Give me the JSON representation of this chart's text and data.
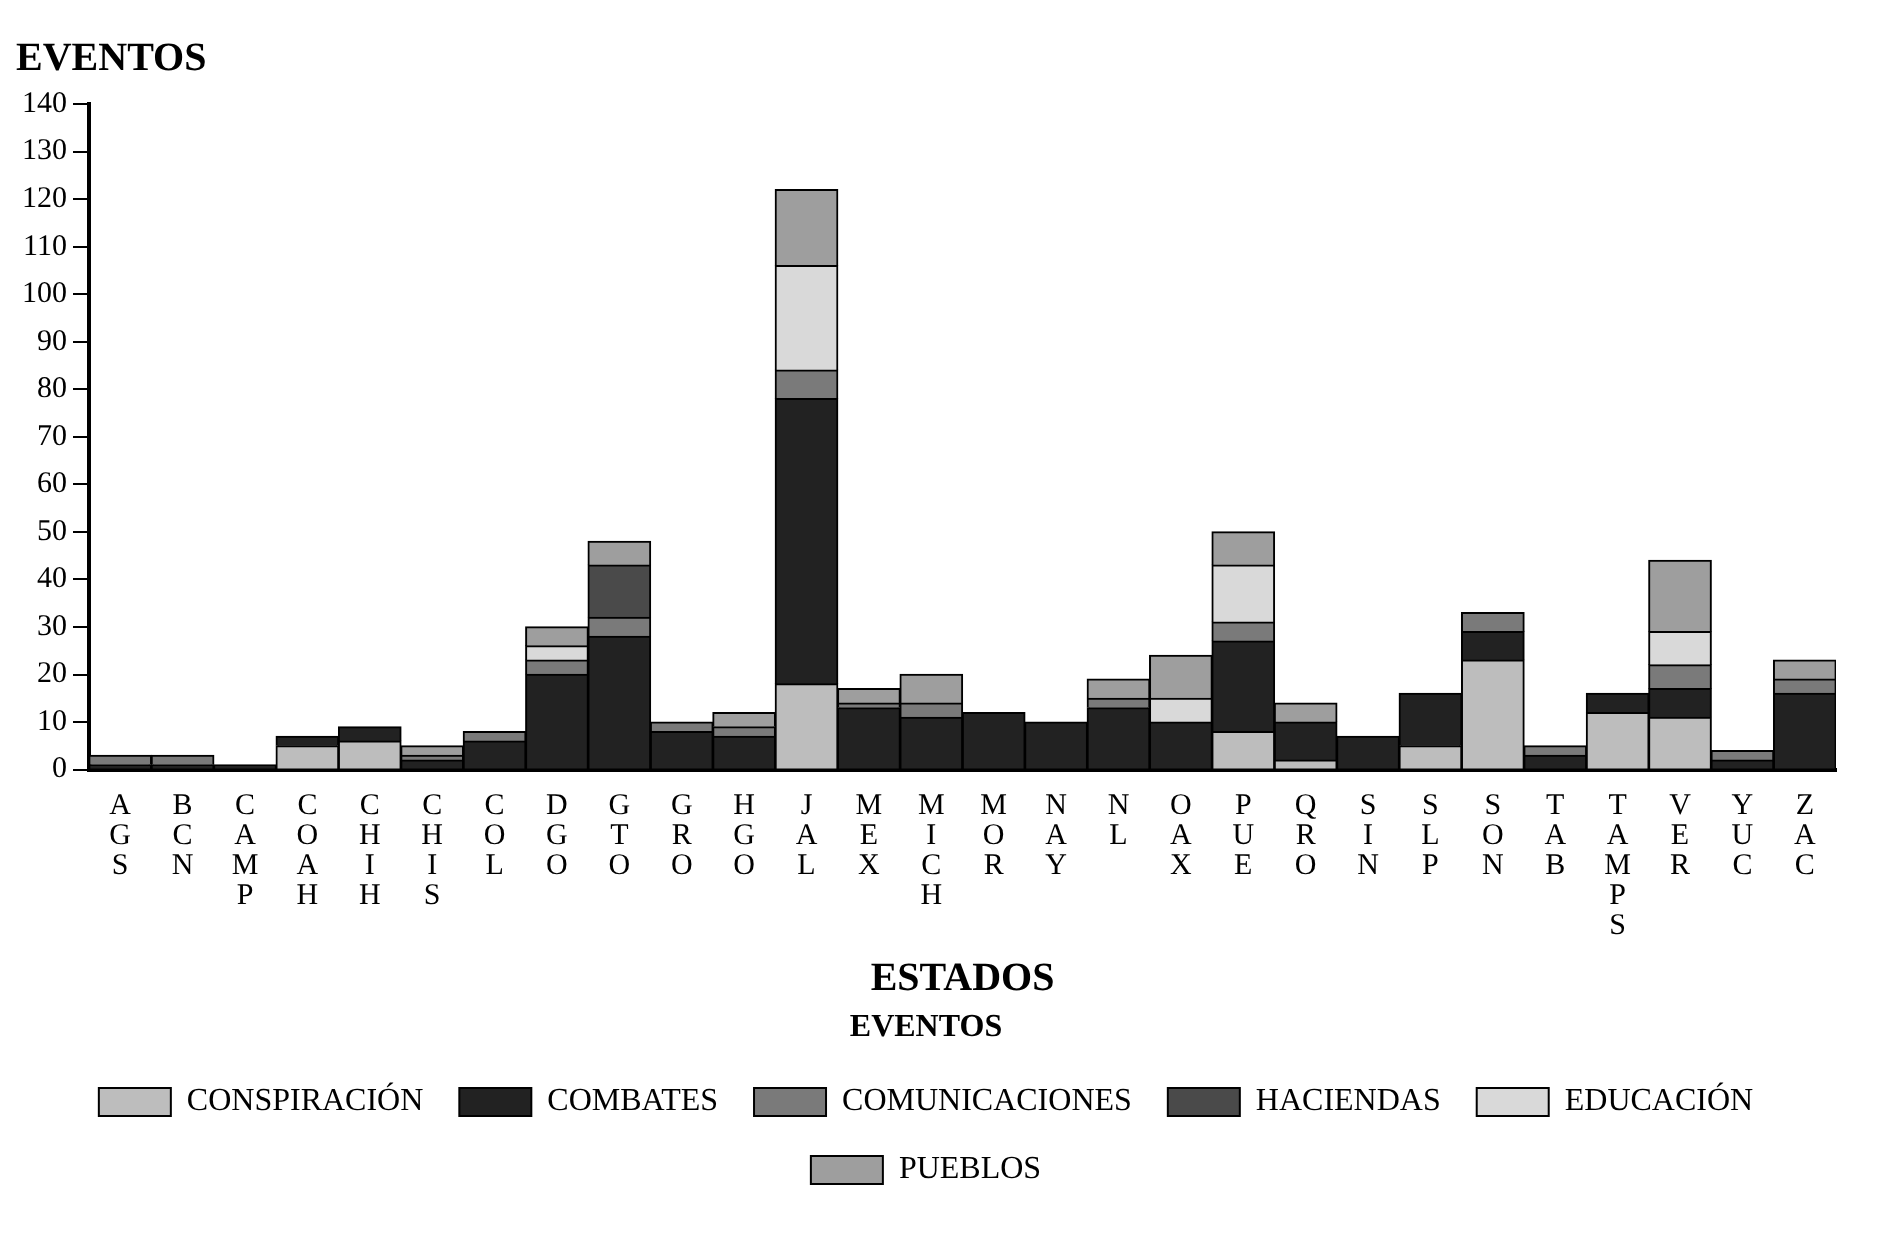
{
  "chart_data": {
    "type": "bar",
    "title": "EVENTOS",
    "xlabel": "ESTADOS",
    "legend_title": "EVENTOS",
    "stacked": true,
    "legend": "bottom",
    "grid": false,
    "categories": [
      "AGS",
      "BCN",
      "CAMP",
      "COAH",
      "CHIH",
      "CHIS",
      "COL",
      "DGO",
      "GTO",
      "GRO",
      "HGO",
      "JAL",
      "MEX",
      "MICH",
      "MOR",
      "NAY",
      "NL",
      "OAX",
      "PUE",
      "QRO",
      "SIN",
      "SLP",
      "SON",
      "TAB",
      "TAMPS",
      "VER",
      "YUC",
      "ZAC"
    ],
    "ylim": [
      0,
      140
    ],
    "yticks": [
      0,
      10,
      20,
      30,
      40,
      50,
      60,
      70,
      80,
      90,
      100,
      110,
      120,
      130,
      140
    ],
    "series": [
      {
        "name": "CONSPIRACIÓN",
        "color": "#bdbdbd",
        "values": [
          0,
          0,
          0,
          5,
          6,
          0,
          0,
          0,
          0,
          0,
          0,
          18,
          0,
          0,
          0,
          0,
          0,
          0,
          8,
          2,
          0,
          5,
          23,
          0,
          12,
          11,
          0,
          0
        ]
      },
      {
        "name": "COMBATES",
        "color": "#222222",
        "values": [
          1,
          1,
          1,
          2,
          3,
          2,
          6,
          20,
          28,
          8,
          7,
          60,
          13,
          11,
          12,
          10,
          13,
          10,
          19,
          8,
          7,
          11,
          6,
          3,
          4,
          6,
          2,
          16
        ]
      },
      {
        "name": "COMUNICACIONES",
        "color": "#7a7a7a",
        "values": [
          2,
          2,
          0,
          0,
          0,
          1,
          2,
          3,
          4,
          2,
          2,
          6,
          1,
          3,
          0,
          0,
          2,
          0,
          4,
          0,
          0,
          0,
          4,
          2,
          0,
          5,
          2,
          3
        ]
      },
      {
        "name": "HACIENDAS",
        "color": "#4a4a4a",
        "values": [
          0,
          0,
          0,
          0,
          0,
          0,
          0,
          0,
          11,
          0,
          0,
          0,
          0,
          0,
          0,
          0,
          0,
          0,
          0,
          0,
          0,
          0,
          0,
          0,
          0,
          0,
          0,
          0
        ]
      },
      {
        "name": "EDUCACIÓN",
        "color": "#d9d9d9",
        "values": [
          0,
          0,
          0,
          0,
          0,
          0,
          0,
          3,
          0,
          0,
          0,
          22,
          0,
          0,
          0,
          0,
          0,
          5,
          12,
          0,
          0,
          0,
          0,
          0,
          0,
          7,
          0,
          0
        ]
      },
      {
        "name": "PUEBLOS",
        "color": "#9e9e9e",
        "values": [
          0,
          0,
          0,
          0,
          0,
          2,
          0,
          4,
          5,
          0,
          3,
          16,
          3,
          6,
          0,
          0,
          4,
          9,
          7,
          4,
          0,
          0,
          0,
          0,
          0,
          15,
          0,
          4
        ]
      }
    ]
  }
}
